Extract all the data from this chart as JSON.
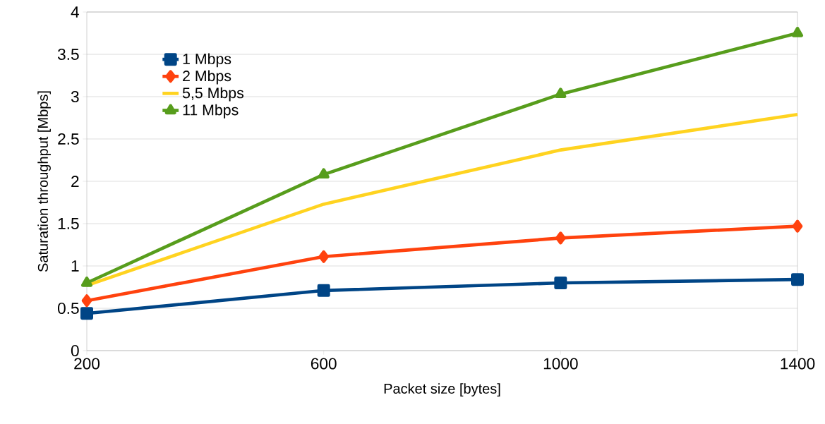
{
  "chart_data": {
    "type": "line",
    "xlabel": "Packet size [bytes]",
    "ylabel": "Saturation throughput [Mbps]",
    "x": [
      200,
      600,
      1000,
      1400
    ],
    "series": [
      {
        "name": "1 Mbps",
        "color": "#004586",
        "marker": "square",
        "values": [
          0.44,
          0.71,
          0.8,
          0.84
        ]
      },
      {
        "name": "2 Mbps",
        "color": "#ff420e",
        "marker": "diamond",
        "values": [
          0.59,
          1.11,
          1.33,
          1.47
        ]
      },
      {
        "name": "5,5 Mbps",
        "color": "#ffd320",
        "marker": "none",
        "values": [
          0.77,
          1.73,
          2.37,
          2.79
        ]
      },
      {
        "name": "11 Mbps",
        "color": "#579d1c",
        "marker": "triangle",
        "values": [
          0.8,
          2.08,
          3.03,
          3.75
        ]
      }
    ],
    "xlim": [
      200,
      1400
    ],
    "xticks": [
      200,
      600,
      1000,
      1400
    ],
    "ylim": [
      0,
      4
    ],
    "yticks": [
      0,
      0.5,
      1,
      1.5,
      2,
      2.5,
      3,
      3.5,
      4
    ],
    "grid": "y",
    "legend": "top left"
  }
}
